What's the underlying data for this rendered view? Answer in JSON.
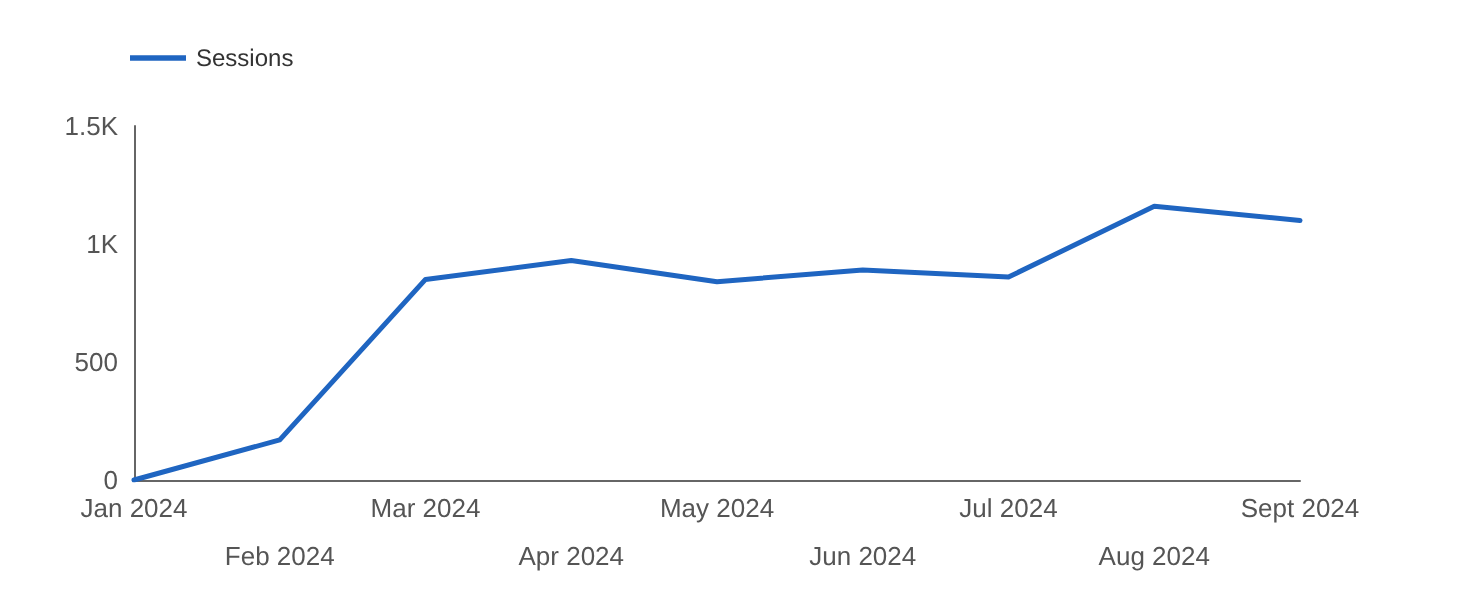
{
  "chart_data": {
    "type": "line",
    "categories": [
      "Jan 2024",
      "Feb 2024",
      "Mar 2024",
      "Apr 2024",
      "May 2024",
      "Jun 2024",
      "Jul 2024",
      "Aug 2024",
      "Sept 2024"
    ],
    "series": [
      {
        "name": "Sessions",
        "color": "#1f65c1",
        "values": [
          0,
          170,
          850,
          930,
          840,
          890,
          860,
          1160,
          1100
        ]
      }
    ],
    "ylim": [
      0,
      1500
    ],
    "yticks": [
      0,
      500,
      {
        "value": 1000,
        "label": "1K"
      },
      {
        "value": 1500,
        "label": "1.5K"
      }
    ],
    "grid": false,
    "legend": "top left",
    "marker": "none",
    "line_style": "solid"
  }
}
